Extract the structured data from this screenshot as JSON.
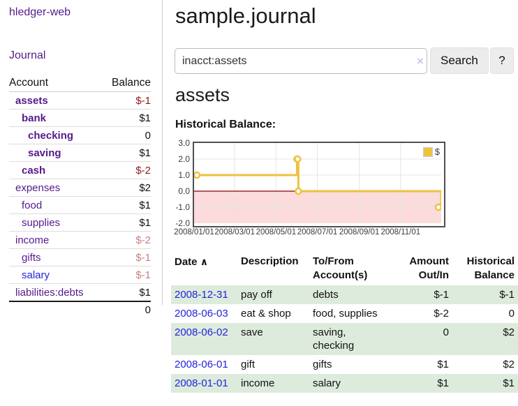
{
  "app": {
    "title": "hledger-web"
  },
  "sidebar": {
    "journal_link": "Journal",
    "accounts_table": {
      "headers": [
        "Account",
        "Balance"
      ],
      "rows": [
        {
          "name": "assets",
          "indent": 1,
          "bold": true,
          "link_color": "purple",
          "balance": "$-1",
          "balance_style": "negstrong"
        },
        {
          "name": "bank",
          "indent": 2,
          "bold": true,
          "link_color": "purple",
          "balance": "$1",
          "balance_style": "strong"
        },
        {
          "name": "checking",
          "indent": 3,
          "bold": true,
          "link_color": "purple",
          "balance": "0",
          "balance_style": "strong"
        },
        {
          "name": "saving",
          "indent": 3,
          "bold": true,
          "link_color": "purple",
          "balance": "$1",
          "balance_style": "strong"
        },
        {
          "name": "cash",
          "indent": 2,
          "bold": true,
          "link_color": "purple",
          "balance": "$-2",
          "balance_style": "negstrong"
        },
        {
          "name": "expenses",
          "indent": 1,
          "bold": false,
          "link_color": "purple",
          "balance": "$2",
          "balance_style": "plain"
        },
        {
          "name": "food",
          "indent": 2,
          "bold": false,
          "link_color": "purple",
          "balance": "$1",
          "balance_style": "plain"
        },
        {
          "name": "supplies",
          "indent": 2,
          "bold": false,
          "link_color": "purple",
          "balance": "$1",
          "balance_style": "plain"
        },
        {
          "name": "income",
          "indent": 1,
          "bold": false,
          "link_color": "purple",
          "balance": "$-2",
          "balance_style": "negfaint"
        },
        {
          "name": "gifts",
          "indent": 2,
          "bold": false,
          "link_color": "purple",
          "balance": "$-1",
          "balance_style": "negfaint"
        },
        {
          "name": "salary",
          "indent": 2,
          "bold": false,
          "link_color": "blue",
          "balance": "$-1",
          "balance_style": "negfaint"
        },
        {
          "name": "liabilities:debts",
          "indent": 1,
          "bold": false,
          "link_color": "purple",
          "balance": "$1",
          "balance_style": "plain"
        }
      ],
      "total": "0"
    }
  },
  "header": {
    "title": "sample.journal"
  },
  "search": {
    "value": "inacct:assets",
    "clear_icon": "×",
    "button_label": "Search",
    "help_label": "?"
  },
  "main": {
    "account_heading": "assets",
    "chart_label": "Historical Balance:"
  },
  "chart_data": {
    "type": "line",
    "style": "step",
    "title": "Historical Balance",
    "xlabel": "",
    "ylabel": "",
    "xlim": [
      "2008-01-01",
      "2008-12-31"
    ],
    "ylim": [
      -2.0,
      3.0
    ],
    "yticks": [
      "3.0",
      "2.0",
      "1.0",
      "0.0",
      "-1.0",
      "-2.0"
    ],
    "xticks": [
      "2008/01/01",
      "2008/03/01",
      "2008/05/01",
      "2008/07/01",
      "2008/09/01",
      "2008/11/01"
    ],
    "grid": true,
    "legend_position": "top-right",
    "series": [
      {
        "name": "$",
        "color": "#edc240",
        "points": [
          [
            "2008-01-01",
            1
          ],
          [
            "2008-06-01",
            2
          ],
          [
            "2008-06-02",
            2
          ],
          [
            "2008-06-03",
            0
          ],
          [
            "2008-12-31",
            -1
          ]
        ]
      }
    ],
    "negative_region_color": "#fbdbdb",
    "zero_line_color": "#8b0000",
    "grid_color": "#e4e4e4"
  },
  "register_table": {
    "headers": {
      "date": "Date",
      "date_sort_icon": "∧",
      "description": "Description",
      "accounts": "To/From Account(s)",
      "amount": "Amount Out/In",
      "balance": "Historical Balance"
    },
    "rows": [
      {
        "date": "2008-12-31",
        "description": "pay off",
        "accounts": "debts",
        "amount": "$-1",
        "amount_neg": true,
        "balance": "$-1",
        "balance_neg": true
      },
      {
        "date": "2008-06-03",
        "description": "eat & shop",
        "accounts": "food, supplies",
        "amount": "$-2",
        "amount_neg": true,
        "balance": "0",
        "balance_neg": false
      },
      {
        "date": "2008-06-02",
        "description": "save",
        "accounts": "saving, checking",
        "amount": "0",
        "amount_neg": false,
        "balance": "$2",
        "balance_neg": false
      },
      {
        "date": "2008-06-01",
        "description": "gift",
        "accounts": "gifts",
        "amount": "$1",
        "amount_neg": false,
        "balance": "$2",
        "balance_neg": false
      },
      {
        "date": "2008-01-01",
        "description": "income",
        "accounts": "salary",
        "amount": "$1",
        "amount_neg": false,
        "balance": "$1",
        "balance_neg": false
      }
    ]
  },
  "colors": {
    "purple_link": "#551A8B",
    "blue_link": "#2323dd",
    "negative_strong": "#8b1a1a",
    "negative_faint": "#c98080",
    "row_stripe_green": "#ddebdd",
    "chart_gold": "#edc240"
  }
}
